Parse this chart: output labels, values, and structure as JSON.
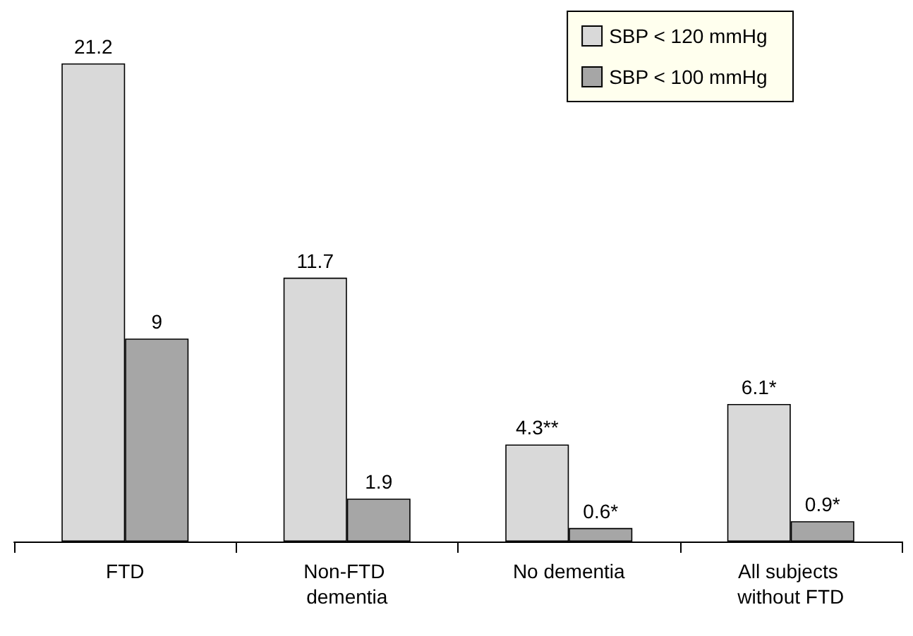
{
  "chart_data": {
    "type": "bar",
    "categories": [
      "FTD",
      "Non-FTD dementia",
      "No dementia",
      "All subjects without FTD"
    ],
    "series": [
      {
        "name": "SBP < 120 mmHg",
        "color": "#d9d9d9",
        "values": [
          21.2,
          11.7,
          4.3,
          6.1
        ],
        "value_labels": [
          "21.2",
          "11.7",
          "4.3**",
          "6.1*"
        ]
      },
      {
        "name": "SBP < 100 mmHg",
        "color": "#a6a6a6",
        "values": [
          9,
          1.9,
          0.6,
          0.9
        ],
        "value_labels": [
          "9",
          "1.9",
          "0.6*",
          "0.9*"
        ]
      }
    ],
    "legend": "top right"
  }
}
